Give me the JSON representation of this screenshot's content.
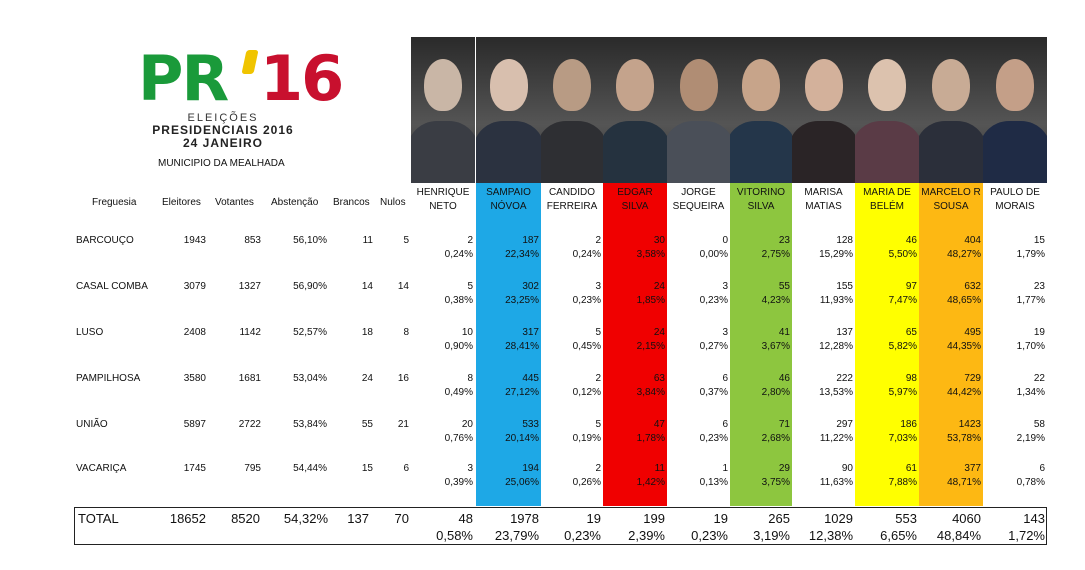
{
  "logo": {
    "pr": "PR",
    "year": "16",
    "line1": "ELEIÇÕES",
    "line2": "PRESIDENCIAIS 2016",
    "line3": "24 JANEIRO"
  },
  "municipio": "MUNICIPIO DA MEALHADA",
  "headers": {
    "freguesia": "Freguesia",
    "eleitores": "Eleitores",
    "votantes": "Votantes",
    "abstencao": "Abstenção",
    "brancos": "Brancos",
    "nulos": "Nulos"
  },
  "colors": {
    "sampaio": "#1ea8e6",
    "edgar": "#f00000",
    "vitorino": "#8dc63f",
    "maria": "#ffff00",
    "marcelo": "#fdb813"
  },
  "candidates": [
    {
      "line1": "HENRIQUE",
      "line2": "NETO",
      "color": ""
    },
    {
      "line1": "SAMPAIO",
      "line2": "NÓVOA",
      "color": "#1ea8e6"
    },
    {
      "line1": "CANDIDO",
      "line2": "FERREIRA",
      "color": ""
    },
    {
      "line1": "EDGAR",
      "line2": "SILVA",
      "color": "#f00000"
    },
    {
      "line1": "JORGE",
      "line2": "SEQUEIRA",
      "color": ""
    },
    {
      "line1": "VITORINO",
      "line2": "SILVA",
      "color": "#8dc63f"
    },
    {
      "line1": "MARISA",
      "line2": "MATIAS",
      "color": ""
    },
    {
      "line1": "MARIA DE",
      "line2": "BELÉM",
      "color": "#ffff00"
    },
    {
      "line1": "MARCELO R",
      "line2": "SOUSA",
      "color": "#fdb813"
    },
    {
      "line1": "PAULO DE",
      "line2": "MORAIS",
      "color": ""
    }
  ],
  "rows": [
    {
      "freguesia": "BARCOUÇO",
      "eleitores": "1943",
      "votantes": "853",
      "abstencao": "56,10%",
      "brancos": "11",
      "nulos": "5",
      "votes": [
        "2",
        "187",
        "2",
        "30",
        "0",
        "23",
        "128",
        "46",
        "404",
        "15"
      ],
      "pct": [
        "0,24%",
        "22,34%",
        "0,24%",
        "3,58%",
        "0,00%",
        "2,75%",
        "15,29%",
        "5,50%",
        "48,27%",
        "1,79%"
      ]
    },
    {
      "freguesia": "CASAL COMBA",
      "eleitores": "3079",
      "votantes": "1327",
      "abstencao": "56,90%",
      "brancos": "14",
      "nulos": "14",
      "votes": [
        "5",
        "302",
        "3",
        "24",
        "3",
        "55",
        "155",
        "97",
        "632",
        "23"
      ],
      "pct": [
        "0,38%",
        "23,25%",
        "0,23%",
        "1,85%",
        "0,23%",
        "4,23%",
        "11,93%",
        "7,47%",
        "48,65%",
        "1,77%"
      ]
    },
    {
      "freguesia": "LUSO",
      "eleitores": "2408",
      "votantes": "1142",
      "abstencao": "52,57%",
      "brancos": "18",
      "nulos": "8",
      "votes": [
        "10",
        "317",
        "5",
        "24",
        "3",
        "41",
        "137",
        "65",
        "495",
        "19"
      ],
      "pct": [
        "0,90%",
        "28,41%",
        "0,45%",
        "2,15%",
        "0,27%",
        "3,67%",
        "12,28%",
        "5,82%",
        "44,35%",
        "1,70%"
      ]
    },
    {
      "freguesia": "PAMPILHOSA",
      "eleitores": "3580",
      "votantes": "1681",
      "abstencao": "53,04%",
      "brancos": "24",
      "nulos": "16",
      "votes": [
        "8",
        "445",
        "2",
        "63",
        "6",
        "46",
        "222",
        "98",
        "729",
        "22"
      ],
      "pct": [
        "0,49%",
        "27,12%",
        "0,12%",
        "3,84%",
        "0,37%",
        "2,80%",
        "13,53%",
        "5,97%",
        "44,42%",
        "1,34%"
      ]
    },
    {
      "freguesia": "UNIÃO",
      "eleitores": "5897",
      "votantes": "2722",
      "abstencao": "53,84%",
      "brancos": "55",
      "nulos": "21",
      "votes": [
        "20",
        "533",
        "5",
        "47",
        "6",
        "71",
        "297",
        "186",
        "1423",
        "58"
      ],
      "pct": [
        "0,76%",
        "20,14%",
        "0,19%",
        "1,78%",
        "0,23%",
        "2,68%",
        "11,22%",
        "7,03%",
        "53,78%",
        "2,19%"
      ]
    },
    {
      "freguesia": "VACARIÇA",
      "eleitores": "1745",
      "votantes": "795",
      "abstencao": "54,44%",
      "brancos": "15",
      "nulos": "6",
      "votes": [
        "3",
        "194",
        "2",
        "11",
        "1",
        "29",
        "90",
        "61",
        "377",
        "6"
      ],
      "pct": [
        "0,39%",
        "25,06%",
        "0,26%",
        "1,42%",
        "0,13%",
        "3,75%",
        "11,63%",
        "7,88%",
        "48,71%",
        "0,78%"
      ]
    }
  ],
  "total": {
    "label": "TOTAL",
    "eleitores": "18652",
    "votantes": "8520",
    "abstencao": "54,32%",
    "brancos": "137",
    "nulos": "70",
    "votes": [
      "48",
      "1978",
      "19",
      "199",
      "19",
      "265",
      "1029",
      "553",
      "4060",
      "143"
    ],
    "pct": [
      "0,58%",
      "23,79%",
      "0,23%",
      "2,39%",
      "0,23%",
      "3,19%",
      "12,38%",
      "6,65%",
      "48,84%",
      "1,72%"
    ]
  }
}
